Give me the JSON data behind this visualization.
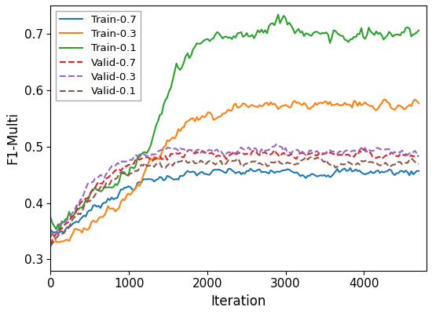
{
  "title": "",
  "xlabel": "Iteration",
  "ylabel": "F1-Multi",
  "xlim": [
    0,
    4800
  ],
  "ylim": [
    0.28,
    0.75
  ],
  "yticks": [
    0.3,
    0.4,
    0.5,
    0.6,
    0.7
  ],
  "xticks": [
    0,
    1000,
    2000,
    3000,
    4000
  ],
  "legend_labels": [
    "Train-0.7",
    "Train-0.3",
    "Train-0.1",
    "Valid-0.7",
    "Valid-0.3",
    "Valid-0.1"
  ],
  "line_colors": [
    "#1f77b4",
    "#ff7f0e",
    "#2ca02c",
    "#d62728",
    "#9467bd",
    "#8c564b"
  ],
  "line_styles": [
    "-",
    "-",
    "-",
    "--",
    "--",
    "--"
  ],
  "figsize": [
    5.5,
    4.0
  ],
  "dpi": 100
}
